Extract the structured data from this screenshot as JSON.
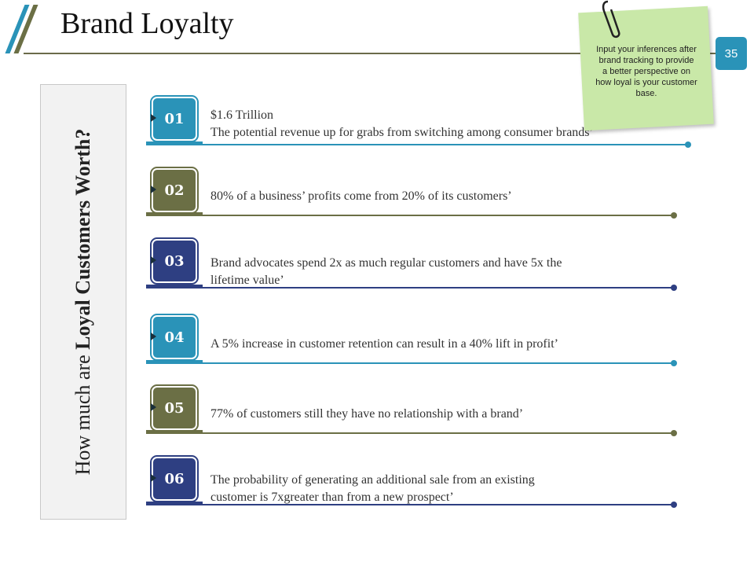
{
  "title": "Brand Loyalty",
  "page_number": "35",
  "colors": {
    "teal": "#2a93b8",
    "olive": "#6b6f45",
    "navy": "#2e3f82",
    "note": "#c9e8a8"
  },
  "side_panel": {
    "text_regular": "How much are ",
    "text_bold": "Loyal Customers Worth?"
  },
  "sticky_note": {
    "text": "Input your inferences after brand tracking to provide a better perspective on how loyal is your customer base.",
    "icon": "paperclip-icon"
  },
  "items": [
    {
      "number": "01",
      "line1": "$1.6 Trillion",
      "line2": "The potential revenue up for grabs from switching among consumer brands’",
      "color": "teal"
    },
    {
      "number": "02",
      "line1": "80% of a business’ profits come from 20% of its customers’",
      "line2": "",
      "color": "olive"
    },
    {
      "number": "03",
      "line1": "Brand advocates spend 2x as much regular customers and have 5x the",
      "line2": "lifetime value’",
      "color": "navy"
    },
    {
      "number": "04",
      "line1": "A 5% increase in customer retention can result in a 40% lift in profit’",
      "line2": "",
      "color": "teal"
    },
    {
      "number": "05",
      "line1": "77% of customers still they have no relationship with a brand’",
      "line2": "",
      "color": "olive"
    },
    {
      "number": "06",
      "line1": "The probability of generating an additional sale from an existing",
      "line2": "customer is 7xgreater than from a new prospect’",
      "color": "navy"
    }
  ]
}
